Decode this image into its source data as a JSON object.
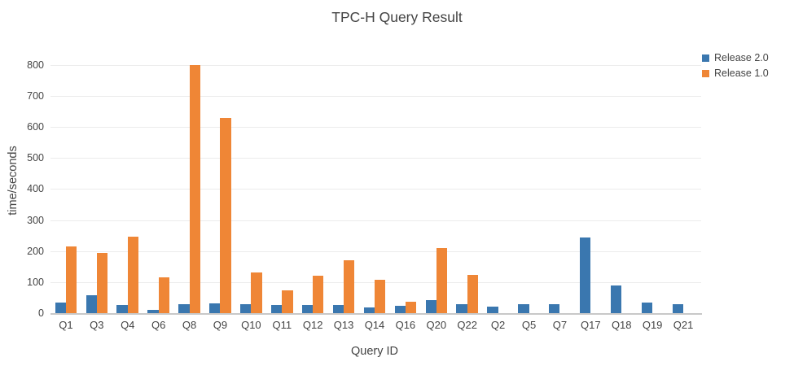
{
  "chart_data": {
    "type": "bar",
    "title": "TPC-H Query Result",
    "xlabel": "Query ID",
    "ylabel": "time/seconds",
    "categories": [
      "Q1",
      "Q3",
      "Q4",
      "Q6",
      "Q8",
      "Q9",
      "Q10",
      "Q11",
      "Q12",
      "Q13",
      "Q14",
      "Q16",
      "Q20",
      "Q22",
      "Q2",
      "Q5",
      "Q7",
      "Q17",
      "Q18",
      "Q19",
      "Q21"
    ],
    "series": [
      {
        "name": "Release 2.0",
        "color": "#3A77AF",
        "values": [
          33,
          57,
          27,
          11,
          29,
          32,
          28,
          25,
          26,
          25,
          18,
          24,
          43,
          28,
          22,
          28,
          29,
          245,
          88,
          34,
          29
        ]
      },
      {
        "name": "Release 1.0",
        "color": "#EF8636",
        "values": [
          214,
          193,
          247,
          116,
          800,
          630,
          131,
          73,
          120,
          171,
          108,
          38,
          210,
          122,
          null,
          null,
          null,
          null,
          null,
          null,
          null
        ]
      }
    ],
    "ylim": [
      0,
      845
    ],
    "yticks": [
      0,
      100,
      200,
      300,
      400,
      500,
      600,
      700,
      800
    ],
    "grid": true,
    "legend_position": "top-right",
    "background": "#ffffff"
  }
}
